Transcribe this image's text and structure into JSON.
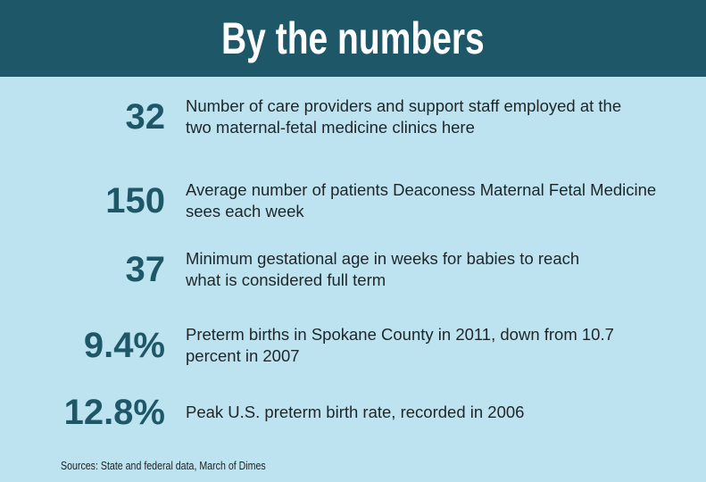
{
  "header": {
    "title": "By the numbers"
  },
  "items": [
    {
      "number": "32",
      "description": [
        "Number of care providers and support staff employed at the",
        "two maternal-fetal medicine clinics here"
      ]
    },
    {
      "number": "150",
      "description": [
        "Average number of patients Deaconess Maternal Fetal Medicine",
        "sees each week"
      ]
    },
    {
      "number": "37",
      "description": [
        "Minimum gestational age in weeks for babies to reach",
        "what is considered full term"
      ]
    },
    {
      "number": "9.4%",
      "description": [
        "Preterm births in Spokane County in 2011, down from 10.7",
        "percent in 2007"
      ]
    },
    {
      "number": "12.8%",
      "description": [
        "Peak U.S. preterm birth rate, recorded in 2006"
      ]
    }
  ],
  "sources": "Sources: State and federal data, March of Dimes"
}
